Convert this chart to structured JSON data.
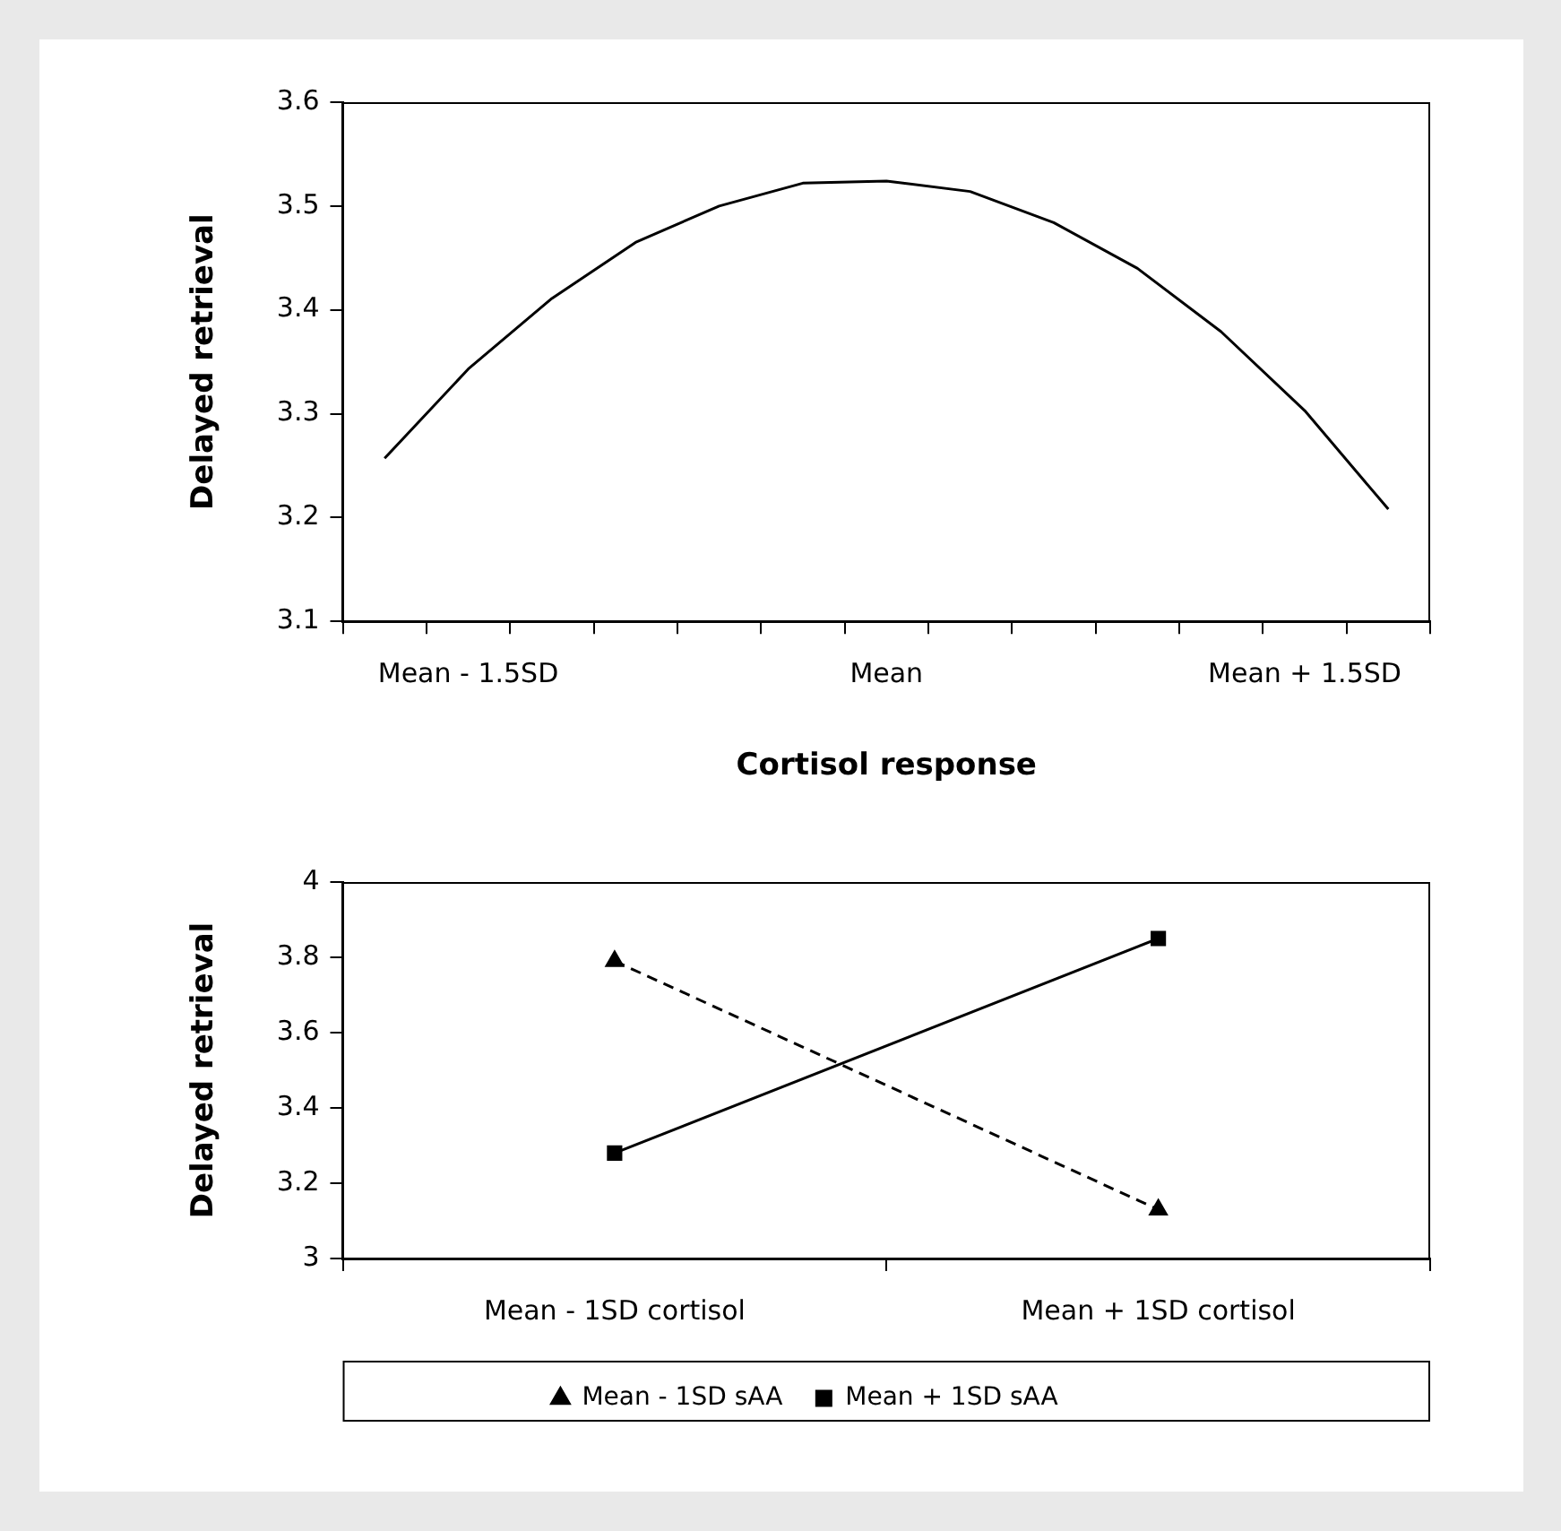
{
  "chart_data": [
    {
      "type": "line",
      "xlabel": "Cortisol response",
      "ylabel": "Delayed retrieval",
      "categories": [
        null,
        "Mean - 1.5SD",
        null,
        null,
        null,
        null,
        "Mean",
        null,
        null,
        null,
        null,
        "Mean + 1.5SD",
        null
      ],
      "series": [
        {
          "color": "#000000",
          "values": [
            3.257,
            3.343,
            3.411,
            3.465,
            3.5,
            3.522,
            3.524,
            3.514,
            3.484,
            3.44,
            3.379,
            3.303,
            3.208
          ]
        }
      ],
      "ylim": [
        3.1,
        3.6
      ],
      "yticks": [
        3.1,
        3.2,
        3.3,
        3.4,
        3.5,
        3.6
      ],
      "grid": false,
      "legend": false,
      "marker": "none",
      "line_style": "solid"
    },
    {
      "type": "line",
      "ylabel": "Delayed retrieval",
      "categories": [
        "Mean - 1SD cortisol",
        "Mean + 1SD cortisol"
      ],
      "series": [
        {
          "name": "Mean - 1SD sAA",
          "color": "#000000",
          "values": [
            3.79,
            3.13
          ],
          "marker": "triangle",
          "line_style": "dashed"
        },
        {
          "name": "Mean + 1SD sAA",
          "color": "#000000",
          "values": [
            3.28,
            3.85
          ],
          "marker": "square",
          "line_style": "solid"
        }
      ],
      "ylim": [
        3,
        4
      ],
      "yticks": [
        3,
        3.2,
        3.4,
        3.6,
        3.8,
        4
      ],
      "grid": false,
      "legend": "bottom"
    }
  ]
}
